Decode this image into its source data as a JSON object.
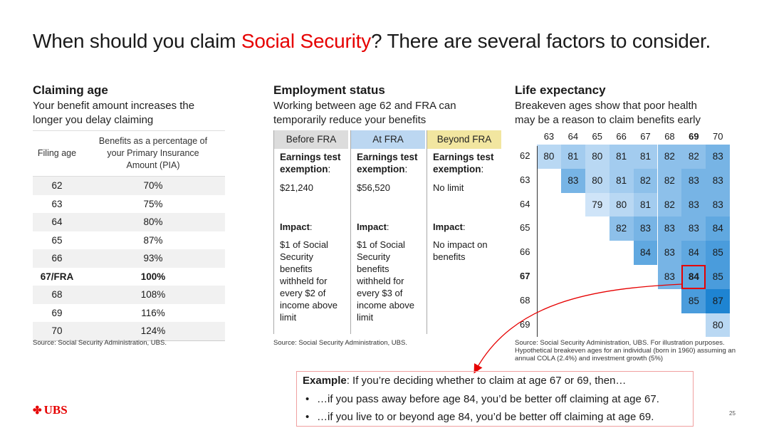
{
  "title": {
    "prefix": "When should you claim ",
    "highlight": "Social Security",
    "suffix": "? There are several factors to consider."
  },
  "claiming": {
    "heading": "Claiming age",
    "subtitle_line1": "Your benefit amount increases the",
    "subtitle_line2": "longer you delay claiming",
    "col1_header": "Filing age",
    "col2_header": "Benefits as a percentage of your Primary Insurance Amount (PIA)",
    "rows": [
      {
        "age": "62",
        "pct": "70%"
      },
      {
        "age": "63",
        "pct": "75%"
      },
      {
        "age": "64",
        "pct": "80%"
      },
      {
        "age": "65",
        "pct": "87%"
      },
      {
        "age": "66",
        "pct": "93%"
      },
      {
        "age": "67/FRA",
        "pct": "100%"
      },
      {
        "age": "68",
        "pct": "108%"
      },
      {
        "age": "69",
        "pct": "116%"
      },
      {
        "age": "70",
        "pct": "124%"
      }
    ],
    "source": "Source: Social Security Administration, UBS."
  },
  "employment": {
    "heading": "Employment status",
    "subtitle_line1": "Working between age 62 and FRA can",
    "subtitle_line2": "temporarily reduce your benefits",
    "columns": [
      {
        "header": "Before FRA",
        "color": "#dcdcdc",
        "exemption_label": "Earnings test exemption",
        "exemption": "$21,240",
        "impact_label": "Impact",
        "impact": "$1 of Social Security benefits withheld for every $2 of income above limit"
      },
      {
        "header": "At FRA",
        "color": "#bcd7f1",
        "exemption_label": "Earnings test exemption",
        "exemption": "$56,520",
        "impact_label": "Impact",
        "impact": "$1 of Social Security benefits withheld for every $3 of income above limit"
      },
      {
        "header": "Beyond FRA",
        "color": "#f2e6a0",
        "exemption_label": "Earnings test exemption",
        "exemption": "No limit",
        "impact_label": "Impact",
        "impact": "No impact on benefits"
      }
    ],
    "source": "Source: Social Security Administration, UBS."
  },
  "life": {
    "heading": "Life expectancy",
    "subtitle_line1": "Breakeven ages show that poor health",
    "subtitle_line2": "may be a reason to claim benefits early",
    "col_ages": [
      "63",
      "64",
      "65",
      "66",
      "67",
      "68",
      "69",
      "70"
    ],
    "row_ages": [
      "62",
      "63",
      "64",
      "65",
      "66",
      "67",
      "68",
      "69"
    ],
    "highlight_col_index": 6,
    "highlight_row_index": 5,
    "grid": [
      [
        "80",
        "81",
        "80",
        "81",
        "81",
        "82",
        "82",
        "83"
      ],
      [
        null,
        "83",
        "80",
        "81",
        "82",
        "82",
        "83",
        "83"
      ],
      [
        null,
        null,
        "79",
        "80",
        "81",
        "82",
        "83",
        "83"
      ],
      [
        null,
        null,
        null,
        "82",
        "83",
        "83",
        "83",
        "84"
      ],
      [
        null,
        null,
        null,
        null,
        "84",
        "83",
        "84",
        "85"
      ],
      [
        null,
        null,
        null,
        null,
        null,
        "83",
        "84",
        "85"
      ],
      [
        null,
        null,
        null,
        null,
        null,
        null,
        "85",
        "87"
      ],
      [
        null,
        null,
        null,
        null,
        null,
        null,
        null,
        "80"
      ]
    ],
    "source": "Source: Social Security Administration, UBS. For illustration purposes. Hypothetical breakeven ages for an individual (born in 1960) assuming an annual COLA (2.4%) and investment growth (5%)"
  },
  "example": {
    "label": "Example",
    "text": ": If you’re deciding whether to claim at age 67 or 69, then…",
    "bullets": [
      "…if you pass away before age 84, you’d be better off claiming at age 67.",
      "…if you live to or beyond age 84, you’d be better off claiming at age 69."
    ]
  },
  "brand": {
    "logo": "UBS",
    "accent": "#e60000"
  },
  "page_number": "25"
}
